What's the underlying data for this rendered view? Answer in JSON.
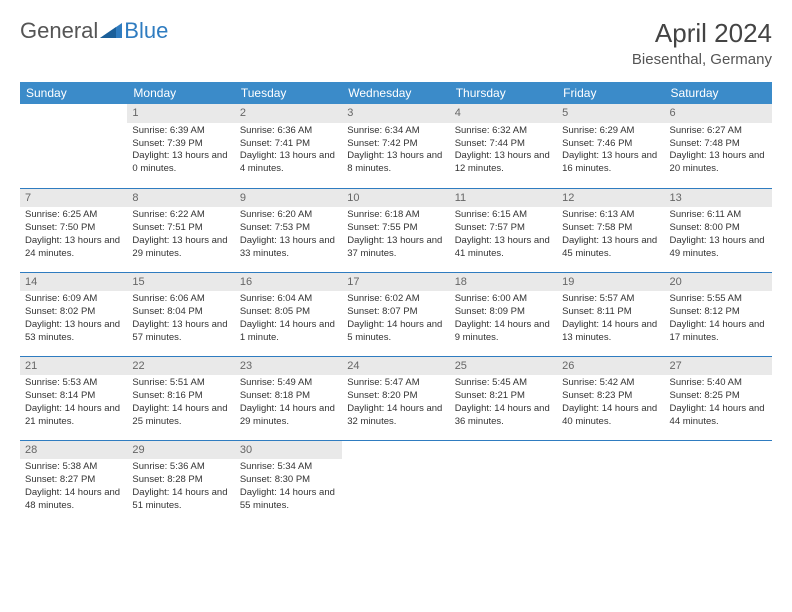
{
  "logo": {
    "text1": "General",
    "text2": "Blue"
  },
  "title": "April 2024",
  "location": "Biesenthal, Germany",
  "colors": {
    "header_bg": "#3b8bc9",
    "header_text": "#ffffff",
    "border": "#2f7cc0",
    "daynum_bg": "#e9e9e9",
    "body_text": "#333333",
    "title_text": "#444444"
  },
  "layout": {
    "columns": 7,
    "rows": 5,
    "font_size_cell": 9.5,
    "font_size_header": 12,
    "font_size_title": 26
  },
  "day_headers": [
    "Sunday",
    "Monday",
    "Tuesday",
    "Wednesday",
    "Thursday",
    "Friday",
    "Saturday"
  ],
  "weeks": [
    [
      {
        "n": "",
        "sr": "",
        "ss": "",
        "dl": ""
      },
      {
        "n": "1",
        "sr": "6:39 AM",
        "ss": "7:39 PM",
        "dl": "13 hours and 0 minutes."
      },
      {
        "n": "2",
        "sr": "6:36 AM",
        "ss": "7:41 PM",
        "dl": "13 hours and 4 minutes."
      },
      {
        "n": "3",
        "sr": "6:34 AM",
        "ss": "7:42 PM",
        "dl": "13 hours and 8 minutes."
      },
      {
        "n": "4",
        "sr": "6:32 AM",
        "ss": "7:44 PM",
        "dl": "13 hours and 12 minutes."
      },
      {
        "n": "5",
        "sr": "6:29 AM",
        "ss": "7:46 PM",
        "dl": "13 hours and 16 minutes."
      },
      {
        "n": "6",
        "sr": "6:27 AM",
        "ss": "7:48 PM",
        "dl": "13 hours and 20 minutes."
      }
    ],
    [
      {
        "n": "7",
        "sr": "6:25 AM",
        "ss": "7:50 PM",
        "dl": "13 hours and 24 minutes."
      },
      {
        "n": "8",
        "sr": "6:22 AM",
        "ss": "7:51 PM",
        "dl": "13 hours and 29 minutes."
      },
      {
        "n": "9",
        "sr": "6:20 AM",
        "ss": "7:53 PM",
        "dl": "13 hours and 33 minutes."
      },
      {
        "n": "10",
        "sr": "6:18 AM",
        "ss": "7:55 PM",
        "dl": "13 hours and 37 minutes."
      },
      {
        "n": "11",
        "sr": "6:15 AM",
        "ss": "7:57 PM",
        "dl": "13 hours and 41 minutes."
      },
      {
        "n": "12",
        "sr": "6:13 AM",
        "ss": "7:58 PM",
        "dl": "13 hours and 45 minutes."
      },
      {
        "n": "13",
        "sr": "6:11 AM",
        "ss": "8:00 PM",
        "dl": "13 hours and 49 minutes."
      }
    ],
    [
      {
        "n": "14",
        "sr": "6:09 AM",
        "ss": "8:02 PM",
        "dl": "13 hours and 53 minutes."
      },
      {
        "n": "15",
        "sr": "6:06 AM",
        "ss": "8:04 PM",
        "dl": "13 hours and 57 minutes."
      },
      {
        "n": "16",
        "sr": "6:04 AM",
        "ss": "8:05 PM",
        "dl": "14 hours and 1 minute."
      },
      {
        "n": "17",
        "sr": "6:02 AM",
        "ss": "8:07 PM",
        "dl": "14 hours and 5 minutes."
      },
      {
        "n": "18",
        "sr": "6:00 AM",
        "ss": "8:09 PM",
        "dl": "14 hours and 9 minutes."
      },
      {
        "n": "19",
        "sr": "5:57 AM",
        "ss": "8:11 PM",
        "dl": "14 hours and 13 minutes."
      },
      {
        "n": "20",
        "sr": "5:55 AM",
        "ss": "8:12 PM",
        "dl": "14 hours and 17 minutes."
      }
    ],
    [
      {
        "n": "21",
        "sr": "5:53 AM",
        "ss": "8:14 PM",
        "dl": "14 hours and 21 minutes."
      },
      {
        "n": "22",
        "sr": "5:51 AM",
        "ss": "8:16 PM",
        "dl": "14 hours and 25 minutes."
      },
      {
        "n": "23",
        "sr": "5:49 AM",
        "ss": "8:18 PM",
        "dl": "14 hours and 29 minutes."
      },
      {
        "n": "24",
        "sr": "5:47 AM",
        "ss": "8:20 PM",
        "dl": "14 hours and 32 minutes."
      },
      {
        "n": "25",
        "sr": "5:45 AM",
        "ss": "8:21 PM",
        "dl": "14 hours and 36 minutes."
      },
      {
        "n": "26",
        "sr": "5:42 AM",
        "ss": "8:23 PM",
        "dl": "14 hours and 40 minutes."
      },
      {
        "n": "27",
        "sr": "5:40 AM",
        "ss": "8:25 PM",
        "dl": "14 hours and 44 minutes."
      }
    ],
    [
      {
        "n": "28",
        "sr": "5:38 AM",
        "ss": "8:27 PM",
        "dl": "14 hours and 48 minutes."
      },
      {
        "n": "29",
        "sr": "5:36 AM",
        "ss": "8:28 PM",
        "dl": "14 hours and 51 minutes."
      },
      {
        "n": "30",
        "sr": "5:34 AM",
        "ss": "8:30 PM",
        "dl": "14 hours and 55 minutes."
      },
      {
        "n": "",
        "sr": "",
        "ss": "",
        "dl": ""
      },
      {
        "n": "",
        "sr": "",
        "ss": "",
        "dl": ""
      },
      {
        "n": "",
        "sr": "",
        "ss": "",
        "dl": ""
      },
      {
        "n": "",
        "sr": "",
        "ss": "",
        "dl": ""
      }
    ]
  ],
  "labels": {
    "sunrise": "Sunrise:",
    "sunset": "Sunset:",
    "daylight": "Daylight:"
  }
}
